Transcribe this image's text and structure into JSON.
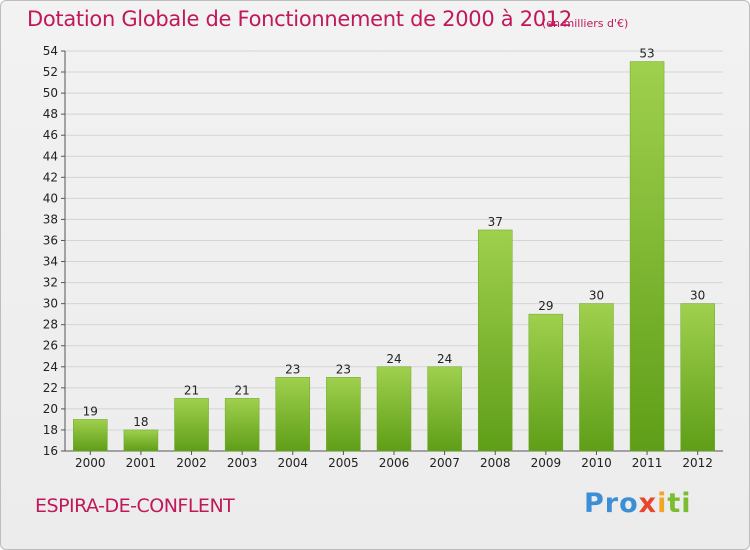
{
  "title": "Dotation Globale de Fonctionnement de 2000 à 2012",
  "subtitle": "(en milliers d'€)",
  "commune": "ESPIRA-DE-CONFLENT",
  "logo": {
    "p1": "Pro",
    "p2": "x",
    "p3": "i",
    "p4": "ti"
  },
  "colors": {
    "title": "#c0185a",
    "bar_light": "#9fd04e",
    "bar_dark": "#5f9e18"
  },
  "chart_data": {
    "type": "bar",
    "title": "Dotation Globale de Fonctionnement de 2000 à 2012",
    "subtitle": "(en milliers d'€)",
    "xlabel": "",
    "ylabel": "",
    "ylim": [
      16,
      54
    ],
    "ytick_step": 2,
    "grid": true,
    "categories": [
      "2000",
      "2001",
      "2002",
      "2003",
      "2004",
      "2005",
      "2006",
      "2007",
      "2008",
      "2009",
      "2010",
      "2011",
      "2012"
    ],
    "values": [
      19,
      18,
      21,
      21,
      23,
      23,
      24,
      24,
      37,
      29,
      30,
      53,
      30
    ]
  }
}
